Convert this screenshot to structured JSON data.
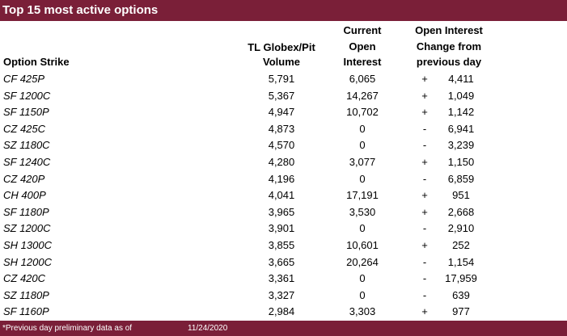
{
  "title": "Top 15 most active options",
  "headers": {
    "strike": "Option Strike",
    "volume_l1": "TL Globex/Pit",
    "volume_l2": "Volume",
    "oi_l1": "Current",
    "oi_l2": "Open",
    "oi_l3": "Interest",
    "chg_l1": "Open Interest",
    "chg_l2": "Change from",
    "chg_l3": "previous day"
  },
  "rows": [
    {
      "strike": "CF 425P",
      "volume": "5,791",
      "oi": "6,065",
      "sign": "+",
      "change": "4,411"
    },
    {
      "strike": "SF 1200C",
      "volume": "5,367",
      "oi": "14,267",
      "sign": "+",
      "change": "1,049"
    },
    {
      "strike": "SF 1150P",
      "volume": "4,947",
      "oi": "10,702",
      "sign": "+",
      "change": "1,142"
    },
    {
      "strike": "CZ 425C",
      "volume": "4,873",
      "oi": "0",
      "sign": "-",
      "change": "6,941"
    },
    {
      "strike": "SZ 1180C",
      "volume": "4,570",
      "oi": "0",
      "sign": "-",
      "change": "3,239"
    },
    {
      "strike": "SF 1240C",
      "volume": "4,280",
      "oi": "3,077",
      "sign": "+",
      "change": "1,150"
    },
    {
      "strike": "CZ 420P",
      "volume": "4,196",
      "oi": "0",
      "sign": "-",
      "change": "6,859"
    },
    {
      "strike": "CH 400P",
      "volume": "4,041",
      "oi": "17,191",
      "sign": "+",
      "change": "951"
    },
    {
      "strike": "SF 1180P",
      "volume": "3,965",
      "oi": "3,530",
      "sign": "+",
      "change": "2,668"
    },
    {
      "strike": "SZ 1200C",
      "volume": "3,901",
      "oi": "0",
      "sign": "-",
      "change": "2,910"
    },
    {
      "strike": "SH 1300C",
      "volume": "3,855",
      "oi": "10,601",
      "sign": "+",
      "change": "252"
    },
    {
      "strike": "SH 1200C",
      "volume": "3,665",
      "oi": "20,264",
      "sign": "-",
      "change": "1,154"
    },
    {
      "strike": "CZ 420C",
      "volume": "3,361",
      "oi": "0",
      "sign": "-",
      "change": "17,959"
    },
    {
      "strike": "SZ 1180P",
      "volume": "3,327",
      "oi": "0",
      "sign": "-",
      "change": "639"
    },
    {
      "strike": "SF 1160P",
      "volume": "2,984",
      "oi": "3,303",
      "sign": "+",
      "change": "977"
    }
  ],
  "footer": {
    "note": "*Previous day preliminary data as of",
    "date": "11/24/2020"
  },
  "colors": {
    "bar": "#7a1f38",
    "bar_text": "#ffffff"
  }
}
